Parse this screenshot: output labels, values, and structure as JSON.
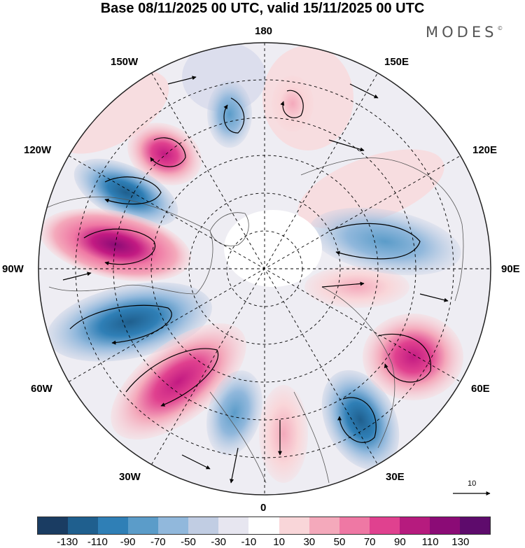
{
  "title": "Base 08/11/2025 00 UTC, valid 15/11/2025 00 UTC",
  "brand": "MODES",
  "brand_mark": "©",
  "longitude_labels": {
    "top": "180",
    "bottom": "0",
    "left": "90W",
    "right": "90E",
    "w150": "150W",
    "w120": "120W",
    "w60": "60W",
    "w30": "30W",
    "e150": "150E",
    "e120": "120E",
    "e60": "60E",
    "e30": "30E"
  },
  "vector_scale_label": "10",
  "colorbar": {
    "colors": [
      "#1a3c62",
      "#1f5f8e",
      "#2f7fb6",
      "#5b9cc9",
      "#91b8dc",
      "#c1cde3",
      "#e7e6f0",
      "#ffffff",
      "#f9d6d9",
      "#f4a9bb",
      "#ef78a4",
      "#e0418f",
      "#b61b7e",
      "#8b0b76",
      "#5e0b6c"
    ],
    "ticks": [
      "-130",
      "-110",
      "-90",
      "-70",
      "-50",
      "-30",
      "-10",
      "10",
      "30",
      "50",
      "70",
      "90",
      "110",
      "130"
    ]
  }
}
